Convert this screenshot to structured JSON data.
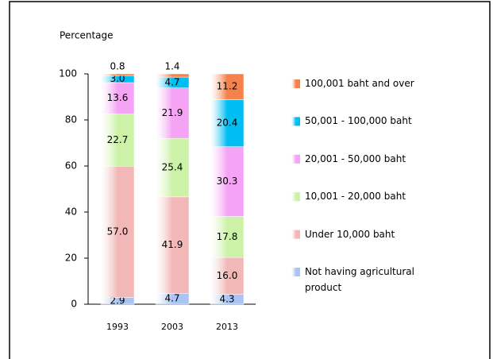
{
  "chart_data": {
    "type": "stacked_bar",
    "y_axis_label": "Percentage",
    "categories": [
      "1993",
      "2003",
      "2013"
    ],
    "ylim": [
      0,
      100
    ],
    "yticks": [
      0,
      20,
      40,
      60,
      80,
      100
    ],
    "series": [
      {
        "name": "Not having agricultural product",
        "color": "#a9c4f5",
        "values": [
          2.9,
          4.7,
          4.3
        ]
      },
      {
        "name": "Under 10,000 baht",
        "color": "#f2b8b8",
        "values": [
          57.0,
          41.9,
          16.0
        ],
        "value_labels": [
          "57.0",
          "41.9",
          "16.0"
        ]
      },
      {
        "name": "10,001 - 20,000 baht",
        "color": "#ccf2a8",
        "values": [
          22.7,
          25.4,
          17.8
        ]
      },
      {
        "name": "20,001 - 50,000 baht",
        "color": "#f5a3f5",
        "values": [
          13.6,
          21.9,
          30.3
        ]
      },
      {
        "name": "50,001 - 100,000 baht",
        "color": "#00bdf2",
        "values": [
          3.0,
          4.7,
          20.4
        ],
        "value_labels": [
          "3.0",
          "4.7",
          "20.4"
        ]
      },
      {
        "name": "100,001 baht and over",
        "color": "#f4824a",
        "values": [
          0.8,
          1.4,
          11.2
        ]
      }
    ]
  }
}
